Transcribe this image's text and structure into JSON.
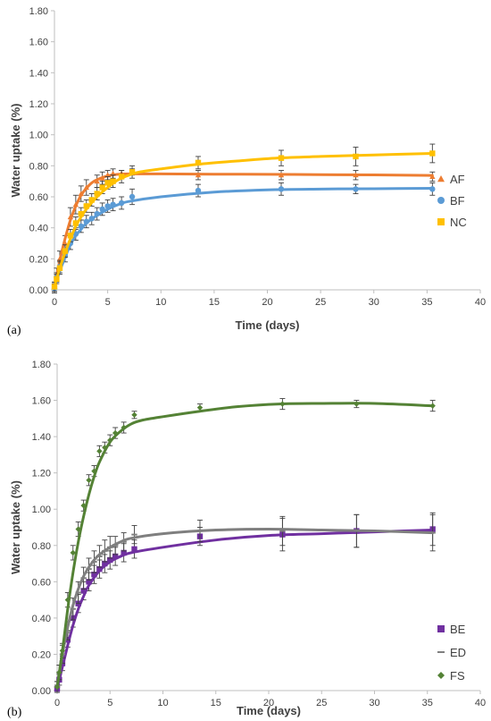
{
  "chart_data": [
    {
      "type": "scatter",
      "panel_label": "(a)",
      "xlabel": "Time (days)",
      "ylabel": "Water uptake (%)",
      "xlim": [
        0,
        40
      ],
      "ylim": [
        0,
        1.8
      ],
      "xticks": [
        "0",
        "5",
        "10",
        "15",
        "20",
        "25",
        "30",
        "35",
        "40"
      ],
      "yticks": [
        "0.00",
        "0.20",
        "0.40",
        "0.60",
        "0.80",
        "1.00",
        "1.20",
        "1.40",
        "1.60",
        "1.80"
      ],
      "grid": false,
      "legend_position": "right",
      "series": [
        {
          "name": "AF",
          "color": "#ED7D31",
          "marker": "triangle",
          "x": [
            0,
            0.2,
            0.5,
            1,
            1.5,
            2,
            2.5,
            3,
            4,
            4.5,
            5,
            5.5,
            6.3,
            7.3,
            13.5,
            21.3,
            28.3,
            35.5
          ],
          "y": [
            0.02,
            0.1,
            0.2,
            0.3,
            0.47,
            0.55,
            0.62,
            0.66,
            0.7,
            0.72,
            0.74,
            0.75,
            0.75,
            0.76,
            0.74,
            0.74,
            0.74,
            0.73
          ],
          "error": [
            0.03,
            0.04,
            0.05,
            0.05,
            0.06,
            0.06,
            0.05,
            0.05,
            0.04,
            0.04,
            0.03,
            0.03,
            0.02,
            0.02,
            0.03,
            0.03,
            0.03,
            0.03
          ],
          "fit_x": [
            0,
            0.5,
            1,
            1.5,
            2,
            2.5,
            3,
            3.5,
            4,
            5,
            6,
            7,
            10,
            15,
            20,
            25,
            30,
            35.5
          ],
          "fit_y": [
            0.02,
            0.19,
            0.33,
            0.45,
            0.54,
            0.61,
            0.655,
            0.69,
            0.71,
            0.735,
            0.745,
            0.748,
            0.748,
            0.746,
            0.745,
            0.743,
            0.741,
            0.738
          ]
        },
        {
          "name": "BF",
          "color": "#5B9BD5",
          "marker": "circle",
          "x": [
            0,
            0.2,
            0.5,
            1,
            1.5,
            2,
            2.5,
            3,
            3.5,
            4,
            4.5,
            5,
            5.5,
            6.3,
            7.3,
            13.5,
            21.3,
            28.3,
            35.5
          ],
          "y": [
            0.01,
            0.08,
            0.15,
            0.22,
            0.3,
            0.36,
            0.41,
            0.44,
            0.46,
            0.49,
            0.52,
            0.54,
            0.55,
            0.56,
            0.6,
            0.64,
            0.65,
            0.65,
            0.65
          ],
          "error": [
            0.03,
            0.03,
            0.04,
            0.04,
            0.04,
            0.04,
            0.04,
            0.04,
            0.04,
            0.04,
            0.04,
            0.04,
            0.04,
            0.04,
            0.05,
            0.04,
            0.04,
            0.03,
            0.04
          ],
          "fit_x": [
            0,
            0.5,
            1,
            1.5,
            2,
            2.5,
            3,
            4,
            5,
            6,
            7,
            10,
            15,
            20,
            25,
            30,
            35.5
          ],
          "fit_y": [
            0.01,
            0.12,
            0.21,
            0.29,
            0.35,
            0.39,
            0.43,
            0.48,
            0.52,
            0.55,
            0.57,
            0.6,
            0.63,
            0.645,
            0.65,
            0.652,
            0.655
          ]
        },
        {
          "name": "NC",
          "color": "#FFC000",
          "marker": "square",
          "x": [
            0,
            0.2,
            0.5,
            1,
            1.5,
            2,
            2.5,
            3,
            3.5,
            4,
            4.5,
            5,
            5.5,
            6.3,
            7.3,
            13.5,
            21.3,
            28.3,
            35.5
          ],
          "y": [
            0.02,
            0.07,
            0.14,
            0.25,
            0.35,
            0.43,
            0.49,
            0.54,
            0.58,
            0.62,
            0.66,
            0.69,
            0.7,
            0.73,
            0.76,
            0.82,
            0.85,
            0.86,
            0.88
          ],
          "error": [
            0.03,
            0.03,
            0.04,
            0.04,
            0.04,
            0.04,
            0.04,
            0.04,
            0.04,
            0.04,
            0.04,
            0.04,
            0.04,
            0.04,
            0.04,
            0.04,
            0.05,
            0.06,
            0.06
          ],
          "fit_x": [
            0,
            0.5,
            1,
            1.5,
            2,
            2.5,
            3,
            4,
            5,
            6,
            7,
            8,
            10,
            13.5,
            17,
            21,
            25,
            30,
            35.5
          ],
          "fit_y": [
            0.02,
            0.14,
            0.24,
            0.33,
            0.41,
            0.47,
            0.52,
            0.6,
            0.66,
            0.71,
            0.74,
            0.76,
            0.78,
            0.81,
            0.83,
            0.85,
            0.86,
            0.87,
            0.88
          ]
        }
      ]
    },
    {
      "type": "scatter",
      "panel_label": "(b)",
      "xlabel": "Time (days)",
      "ylabel": "Water uptake (%)",
      "xlim": [
        0,
        40
      ],
      "ylim": [
        0,
        1.8
      ],
      "xticks": [
        "0",
        "5",
        "10",
        "15",
        "20",
        "25",
        "30",
        "35",
        "40"
      ],
      "yticks": [
        "0.00",
        "0.20",
        "0.40",
        "0.60",
        "0.80",
        "1.00",
        "1.20",
        "1.40",
        "1.60",
        "1.80"
      ],
      "grid": false,
      "legend_position": "bottom-right",
      "series": [
        {
          "name": "BE",
          "color": "#7030A0",
          "marker": "square",
          "x": [
            0,
            0.2,
            0.5,
            1,
            1.5,
            2,
            2.5,
            3,
            3.5,
            4,
            4.5,
            5,
            5.5,
            6.3,
            7.3,
            13.5,
            21.3,
            28.3,
            35.5
          ],
          "y": [
            0.01,
            0.06,
            0.15,
            0.28,
            0.4,
            0.48,
            0.55,
            0.6,
            0.64,
            0.67,
            0.7,
            0.72,
            0.74,
            0.76,
            0.78,
            0.85,
            0.86,
            0.88,
            0.89
          ],
          "error": [
            0.02,
            0.03,
            0.04,
            0.04,
            0.05,
            0.05,
            0.05,
            0.05,
            0.05,
            0.05,
            0.05,
            0.05,
            0.05,
            0.05,
            0.05,
            0.05,
            0.09,
            0.09,
            0.09
          ],
          "fit_x": [
            0,
            0.5,
            1,
            1.5,
            2,
            2.5,
            3,
            4,
            5,
            6,
            7,
            10,
            15,
            20,
            25,
            30,
            35.5
          ],
          "fit_y": [
            0.01,
            0.13,
            0.25,
            0.36,
            0.45,
            0.52,
            0.58,
            0.66,
            0.71,
            0.74,
            0.76,
            0.79,
            0.83,
            0.855,
            0.865,
            0.875,
            0.885
          ]
        },
        {
          "name": "ED",
          "color": "#7F7F7F",
          "marker": "dash",
          "x": [
            0,
            0.2,
            0.5,
            1,
            1.5,
            2,
            2.5,
            3,
            3.5,
            4,
            4.5,
            5,
            5.5,
            6.3,
            7.3,
            13.5,
            21.3,
            28.3,
            35.5
          ],
          "y": [
            0.02,
            0.1,
            0.2,
            0.33,
            0.45,
            0.54,
            0.62,
            0.67,
            0.71,
            0.74,
            0.77,
            0.79,
            0.8,
            0.82,
            0.86,
            0.88,
            0.88,
            0.88,
            0.87
          ],
          "error": [
            0.03,
            0.04,
            0.05,
            0.05,
            0.06,
            0.06,
            0.06,
            0.06,
            0.06,
            0.06,
            0.06,
            0.06,
            0.05,
            0.05,
            0.05,
            0.06,
            0.08,
            0.09,
            0.1
          ],
          "fit_x": [
            0,
            0.5,
            1,
            1.5,
            2,
            2.5,
            3,
            3.5,
            4,
            5,
            6,
            7,
            10,
            15,
            20,
            25,
            30,
            35.5
          ],
          "fit_y": [
            0.02,
            0.2,
            0.35,
            0.47,
            0.56,
            0.63,
            0.68,
            0.72,
            0.75,
            0.79,
            0.82,
            0.84,
            0.865,
            0.885,
            0.89,
            0.885,
            0.88,
            0.87
          ]
        },
        {
          "name": "FS",
          "color": "#548235",
          "marker": "diamond",
          "x": [
            0,
            0.2,
            0.5,
            1,
            1.5,
            2,
            2.5,
            3,
            3.5,
            4,
            4.5,
            5,
            5.5,
            6.3,
            7.3,
            13.5,
            21.3,
            28.3,
            35.5
          ],
          "y": [
            0.02,
            0.1,
            0.22,
            0.5,
            0.76,
            0.89,
            1.02,
            1.16,
            1.21,
            1.32,
            1.34,
            1.38,
            1.42,
            1.45,
            1.52,
            1.56,
            1.58,
            1.58,
            1.57
          ],
          "error": [
            0.03,
            0.04,
            0.04,
            0.04,
            0.04,
            0.04,
            0.03,
            0.03,
            0.03,
            0.03,
            0.03,
            0.03,
            0.03,
            0.03,
            0.02,
            0.02,
            0.03,
            0.02,
            0.03
          ],
          "fit_x": [
            0,
            0.5,
            1,
            1.5,
            2,
            2.5,
            3,
            3.5,
            4,
            5,
            6,
            7,
            8,
            10,
            13.5,
            17,
            21,
            25,
            30,
            35.5
          ],
          "fit_y": [
            0.02,
            0.22,
            0.45,
            0.65,
            0.82,
            0.96,
            1.08,
            1.18,
            1.26,
            1.37,
            1.43,
            1.47,
            1.49,
            1.51,
            1.54,
            1.565,
            1.58,
            1.583,
            1.583,
            1.57
          ]
        }
      ]
    }
  ]
}
